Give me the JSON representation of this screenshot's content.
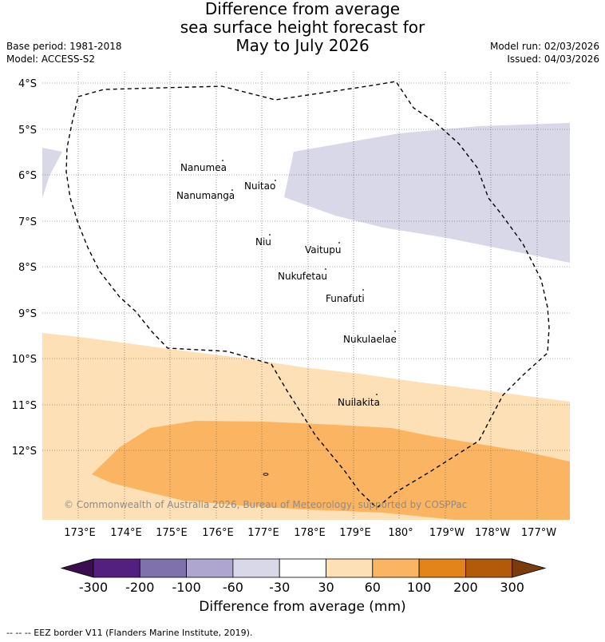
{
  "title": {
    "line1": "Difference from average",
    "line2": "sea surface height forecast for",
    "line3": "May to July 2026"
  },
  "meta": {
    "base_period": "Base period: 1981-2018",
    "model": "Model: ACCESS-S2",
    "model_run": "Model run: 02/03/2026",
    "issued": "Issued: 04/03/2026"
  },
  "lat_labels": [
    "4°S",
    "5°S",
    "6°S",
    "7°S",
    "8°S",
    "9°S",
    "10°S",
    "11°S",
    "12°S"
  ],
  "lon_labels": [
    "173°E",
    "174°E",
    "175°E",
    "176°E",
    "177°E",
    "178°E",
    "179°E",
    "180°",
    "179°W",
    "178°W",
    "177°W"
  ],
  "islands": [
    {
      "name": "Nanumea"
    },
    {
      "name": "Nuitao"
    },
    {
      "name": "Nanumanga"
    },
    {
      "name": "Niu"
    },
    {
      "name": "Vaitupu"
    },
    {
      "name": "Nukufetau"
    },
    {
      "name": "Funafuti"
    },
    {
      "name": "Nukulaelae"
    },
    {
      "name": "Nuilakita"
    }
  ],
  "copyright": "© Commonwealth of Australia 2026, Bureau of Meteorology, supported by COSPPac",
  "colorbar": {
    "ticks": [
      "-300",
      "-200",
      "-100",
      "-60",
      "-30",
      "30",
      "60",
      "100",
      "200",
      "300"
    ],
    "colors": [
      "#3b0f4f",
      "#54207f",
      "#7f71ab",
      "#aea6cf",
      "#d8d8e9",
      "#ffffff",
      "#fde0b5",
      "#fbb562",
      "#e2841a",
      "#b25a0a",
      "#7a3b0d"
    ],
    "label": "Difference from average (mm)"
  },
  "footnote": "-- -- -- EEZ border V11 (Flanders Marine Institute, 2019)."
}
